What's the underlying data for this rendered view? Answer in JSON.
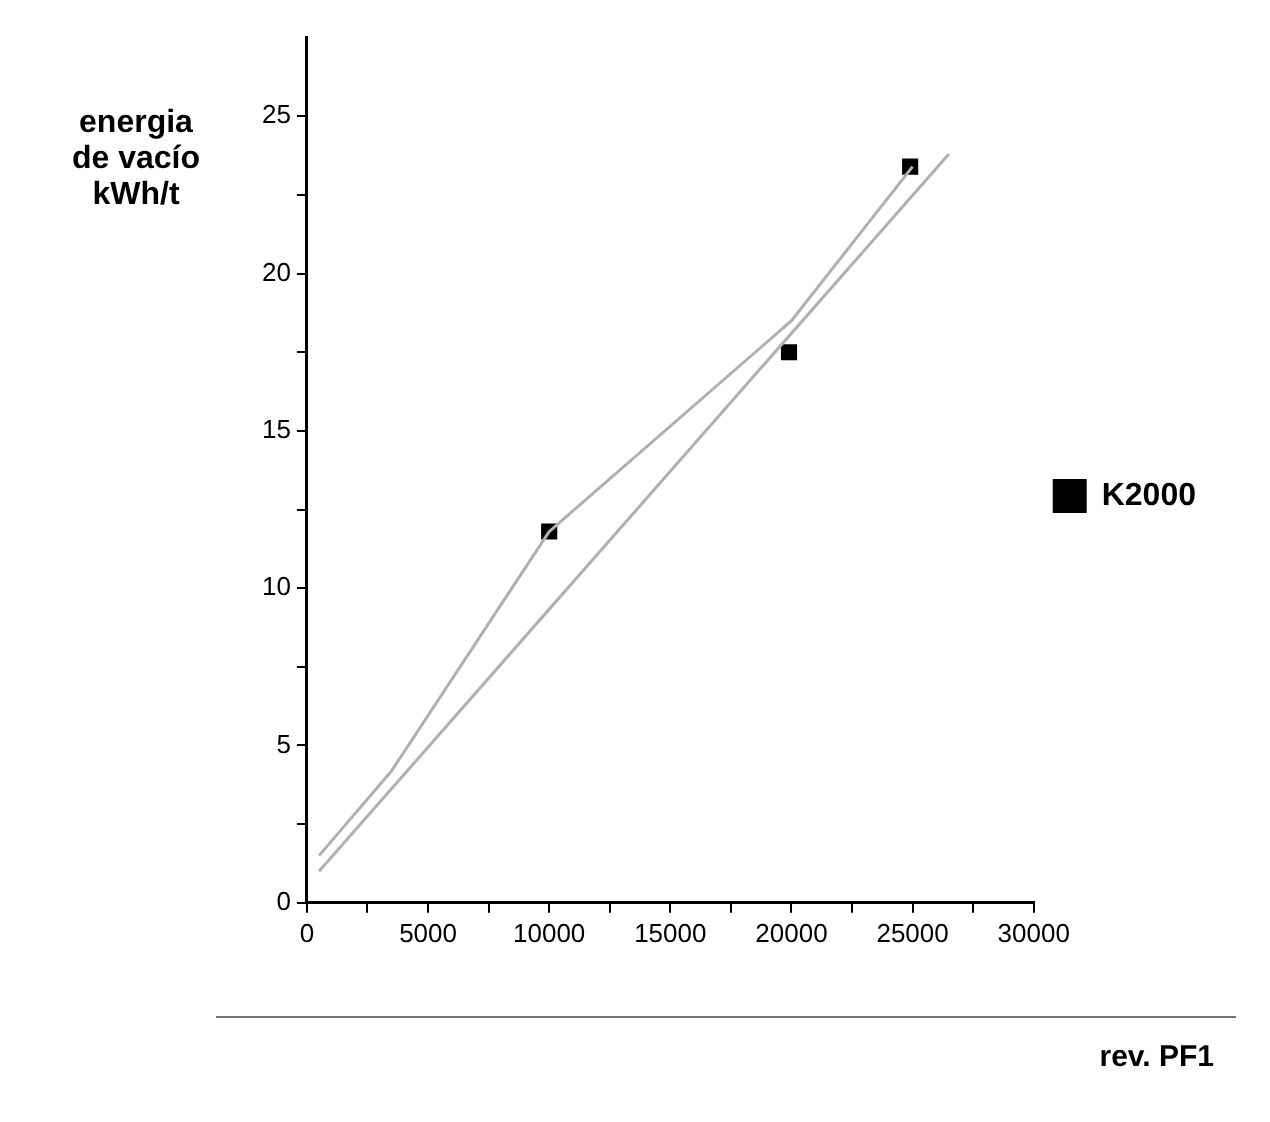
{
  "chart_data": {
    "type": "scatter",
    "xlabel": "rev. PF1",
    "ylabel": "energia\nde vacío\nkWh/t",
    "xlim": [
      0,
      30000
    ],
    "ylim": [
      0,
      27.5
    ],
    "xticks": [
      0,
      {
        "value": 2500,
        "label": null
      },
      5000,
      {
        "value": 7500,
        "label": null
      },
      10000,
      {
        "value": 12500,
        "label": null
      },
      15000,
      {
        "value": 17500,
        "label": null
      },
      20000,
      {
        "value": 22500,
        "label": null
      },
      25000,
      {
        "value": 27500,
        "label": null
      },
      30000
    ],
    "yticks": [
      0,
      {
        "value": 2.5,
        "label": null
      },
      5,
      {
        "value": 7.5,
        "label": null
      },
      10,
      {
        "value": 12.5,
        "label": null
      },
      15,
      {
        "value": 17.5,
        "label": null
      },
      20,
      {
        "value": 22.5,
        "label": null
      },
      25
    ],
    "grid": false,
    "legend": "right",
    "marker": "square",
    "series": [
      {
        "type": "line",
        "color": "#b0b0b0",
        "marker": "none",
        "x": [
          500,
          3500,
          10000,
          20000,
          25000
        ],
        "values": [
          1.5,
          4.2,
          11.8,
          18.5,
          23.4
        ]
      },
      {
        "type": "line",
        "color": "#b0b0b0",
        "marker": "none",
        "x": [
          500,
          26500
        ],
        "values": [
          1.0,
          23.8
        ]
      },
      {
        "type": "scatter",
        "name": "K2000",
        "color": "#000000",
        "x": [
          10000,
          19900,
          24900
        ],
        "values": [
          11.8,
          17.5,
          23.4
        ]
      }
    ]
  }
}
